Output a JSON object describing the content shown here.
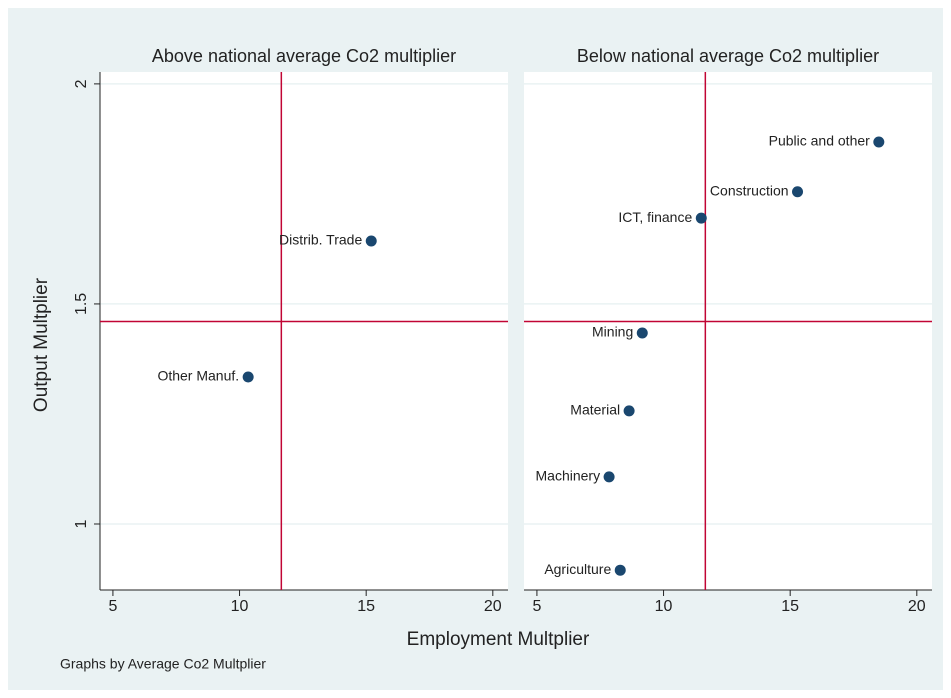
{
  "chart_data": {
    "type": "scatter",
    "xlabel": "Employment Multplier",
    "ylabel": "Output Multplier",
    "note": "Graphs by Average Co2 Multplier",
    "color": "#1a476f",
    "line_color": "#c10534",
    "xlim": [
      4.49,
      20.6
    ],
    "xticks": [
      5,
      10,
      15,
      20
    ],
    "ylim": [
      0.85,
      2.027
    ],
    "yticks": [
      1,
      1.5,
      2
    ],
    "grid": true,
    "xline": 11.65,
    "yline": 1.46,
    "panels": [
      {
        "title": "Above national average Co2 multiplier",
        "labels": [
          "Distrib. Trade",
          "Other Manuf."
        ],
        "x": [
          15.2,
          10.34
        ],
        "y": [
          1.643,
          1.334
        ]
      },
      {
        "title": "Below national average Co2 multiplier",
        "labels": [
          "Public and other",
          "Construction",
          "ICT, finance",
          "Mining",
          "Material",
          "Machinery",
          "Agriculture"
        ],
        "x": [
          18.5,
          15.29,
          11.49,
          9.16,
          8.64,
          7.85,
          8.29
        ],
        "y": [
          1.868,
          1.755,
          1.695,
          1.434,
          1.257,
          1.107,
          0.895
        ]
      }
    ]
  }
}
